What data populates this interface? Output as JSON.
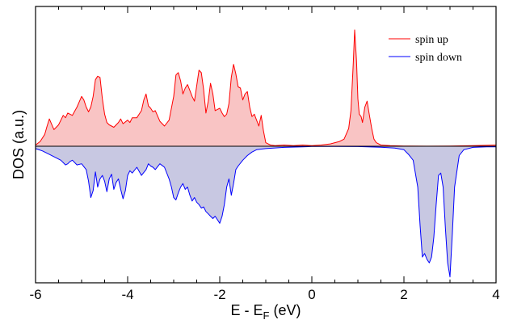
{
  "chart_data": {
    "type": "area",
    "xlabel": {
      "main": "E - E",
      "sub": "F",
      "unit": " (eV)"
    },
    "ylabel": "DOS (a.u.)",
    "xlim": [
      -6,
      4
    ],
    "ylim": [
      -1.15,
      1.15
    ],
    "xticks": [
      -6,
      -4,
      -2,
      0,
      2,
      4
    ],
    "xtick_labels": [
      "-6",
      "-4",
      "-2",
      "0",
      "2",
      "4"
    ],
    "yticks_labeled": false,
    "grid": false,
    "legend_position": "top-right",
    "zero_line": true,
    "series": [
      {
        "name": "spin up",
        "color": "#ff0000",
        "fill": "#f9c4c4",
        "x": [
          -6.0,
          -5.9,
          -5.8,
          -5.75,
          -5.7,
          -5.6,
          -5.5,
          -5.4,
          -5.35,
          -5.3,
          -5.2,
          -5.1,
          -5.0,
          -4.95,
          -4.9,
          -4.85,
          -4.8,
          -4.75,
          -4.7,
          -4.65,
          -4.6,
          -4.55,
          -4.5,
          -4.45,
          -4.4,
          -4.3,
          -4.2,
          -4.15,
          -4.1,
          -4.0,
          -3.95,
          -3.9,
          -3.8,
          -3.7,
          -3.65,
          -3.6,
          -3.55,
          -3.5,
          -3.45,
          -3.4,
          -3.3,
          -3.2,
          -3.1,
          -3.0,
          -2.95,
          -2.9,
          -2.85,
          -2.8,
          -2.75,
          -2.7,
          -2.65,
          -2.6,
          -2.55,
          -2.5,
          -2.45,
          -2.4,
          -2.35,
          -2.3,
          -2.25,
          -2.2,
          -2.15,
          -2.1,
          -2.05,
          -2.0,
          -1.95,
          -1.9,
          -1.85,
          -1.8,
          -1.75,
          -1.7,
          -1.65,
          -1.6,
          -1.55,
          -1.5,
          -1.45,
          -1.4,
          -1.35,
          -1.3,
          -1.25,
          -1.2,
          -1.15,
          -1.1,
          -1.05,
          -1.0,
          -0.9,
          -0.8,
          -0.6,
          -0.4,
          -0.2,
          0.0,
          0.2,
          0.4,
          0.6,
          0.7,
          0.8,
          0.85,
          0.9,
          0.93,
          0.97,
          1.0,
          1.03,
          1.07,
          1.1,
          1.15,
          1.2,
          1.25,
          1.3,
          1.35,
          1.4,
          1.5,
          1.7,
          2.0,
          2.5,
          3.0,
          3.5,
          4.0
        ],
        "y": [
          0.01,
          0.04,
          0.1,
          0.17,
          0.23,
          0.14,
          0.18,
          0.26,
          0.24,
          0.28,
          0.26,
          0.33,
          0.42,
          0.39,
          0.33,
          0.29,
          0.33,
          0.42,
          0.56,
          0.59,
          0.58,
          0.4,
          0.27,
          0.2,
          0.18,
          0.16,
          0.2,
          0.23,
          0.19,
          0.22,
          0.2,
          0.24,
          0.24,
          0.3,
          0.39,
          0.44,
          0.34,
          0.32,
          0.29,
          0.3,
          0.21,
          0.17,
          0.22,
          0.42,
          0.6,
          0.62,
          0.55,
          0.44,
          0.49,
          0.52,
          0.47,
          0.42,
          0.38,
          0.51,
          0.64,
          0.62,
          0.48,
          0.28,
          0.38,
          0.53,
          0.44,
          0.3,
          0.31,
          0.32,
          0.28,
          0.25,
          0.27,
          0.36,
          0.58,
          0.69,
          0.61,
          0.5,
          0.49,
          0.39,
          0.44,
          0.46,
          0.33,
          0.25,
          0.27,
          0.22,
          0.17,
          0.26,
          0.13,
          0.03,
          0.01,
          0.005,
          0.01,
          0.005,
          0.01,
          0.005,
          0.01,
          0.02,
          0.04,
          0.06,
          0.15,
          0.3,
          0.7,
          0.98,
          0.72,
          0.4,
          0.27,
          0.25,
          0.2,
          0.33,
          0.38,
          0.26,
          0.15,
          0.06,
          0.03,
          0.01,
          0.005,
          0.002,
          0.001,
          0.002,
          0.005,
          0.01
        ]
      },
      {
        "name": "spin down",
        "color": "#0000ff",
        "fill": "#c8c8e2",
        "x": [
          -6.0,
          -5.85,
          -5.7,
          -5.55,
          -5.45,
          -5.35,
          -5.3,
          -5.25,
          -5.2,
          -5.1,
          -5.0,
          -4.9,
          -4.85,
          -4.8,
          -4.75,
          -4.7,
          -4.65,
          -4.6,
          -4.55,
          -4.5,
          -4.45,
          -4.4,
          -4.35,
          -4.3,
          -4.25,
          -4.2,
          -4.15,
          -4.1,
          -4.05,
          -4.0,
          -3.95,
          -3.9,
          -3.8,
          -3.7,
          -3.6,
          -3.55,
          -3.5,
          -3.45,
          -3.4,
          -3.3,
          -3.2,
          -3.1,
          -3.05,
          -3.0,
          -2.95,
          -2.9,
          -2.85,
          -2.8,
          -2.75,
          -2.7,
          -2.65,
          -2.6,
          -2.55,
          -2.5,
          -2.45,
          -2.4,
          -2.35,
          -2.3,
          -2.25,
          -2.2,
          -2.15,
          -2.1,
          -2.05,
          -2.0,
          -1.95,
          -1.9,
          -1.85,
          -1.8,
          -1.75,
          -1.7,
          -1.65,
          -1.6,
          -1.5,
          -1.4,
          -1.3,
          -1.2,
          -1.0,
          -0.6,
          -0.2,
          0.0,
          0.5,
          1.0,
          1.5,
          1.8,
          2.0,
          2.1,
          2.2,
          2.3,
          2.35,
          2.4,
          2.45,
          2.5,
          2.55,
          2.6,
          2.65,
          2.7,
          2.75,
          2.8,
          2.85,
          2.9,
          2.95,
          3.0,
          3.05,
          3.1,
          3.2,
          3.3,
          3.5,
          3.8,
          4.0
        ],
        "y": [
          -0.02,
          -0.04,
          -0.07,
          -0.1,
          -0.12,
          -0.16,
          -0.15,
          -0.13,
          -0.12,
          -0.16,
          -0.15,
          -0.2,
          -0.3,
          -0.44,
          -0.38,
          -0.22,
          -0.35,
          -0.28,
          -0.25,
          -0.3,
          -0.39,
          -0.28,
          -0.24,
          -0.37,
          -0.31,
          -0.28,
          -0.37,
          -0.45,
          -0.38,
          -0.25,
          -0.21,
          -0.23,
          -0.18,
          -0.25,
          -0.2,
          -0.15,
          -0.17,
          -0.18,
          -0.2,
          -0.15,
          -0.18,
          -0.28,
          -0.35,
          -0.44,
          -0.46,
          -0.4,
          -0.35,
          -0.32,
          -0.37,
          -0.35,
          -0.42,
          -0.47,
          -0.44,
          -0.48,
          -0.5,
          -0.53,
          -0.52,
          -0.56,
          -0.58,
          -0.6,
          -0.62,
          -0.6,
          -0.63,
          -0.66,
          -0.6,
          -0.5,
          -0.35,
          -0.28,
          -0.42,
          -0.32,
          -0.2,
          -0.17,
          -0.12,
          -0.08,
          -0.05,
          -0.03,
          -0.02,
          -0.01,
          -0.005,
          -0.002,
          -0.002,
          -0.003,
          -0.008,
          -0.015,
          -0.03,
          -0.07,
          -0.12,
          -0.35,
          -0.68,
          -0.95,
          -0.92,
          -0.97,
          -1.0,
          -0.95,
          -0.78,
          -0.5,
          -0.25,
          -0.23,
          -0.35,
          -0.7,
          -1.0,
          -1.12,
          -0.75,
          -0.35,
          -0.08,
          -0.03,
          -0.01,
          -0.005,
          -0.005
        ]
      }
    ]
  }
}
